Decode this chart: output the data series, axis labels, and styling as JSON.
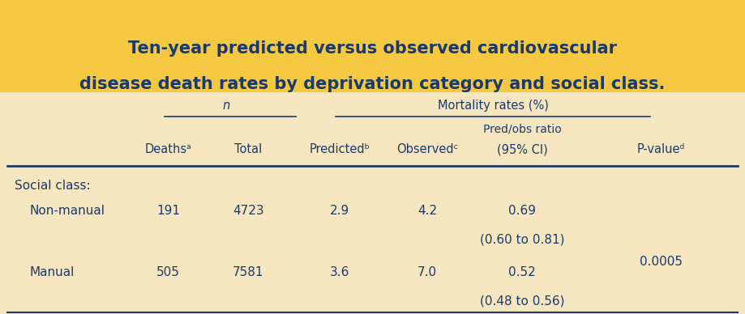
{
  "title_line1": "Ten-year predicted versus observed cardiovascular",
  "title_line2": "disease death rates by deprivation category and social class.",
  "title_bg_color": "#F5C842",
  "table_bg_color": "#F5E6C0",
  "text_color": "#1B3A6B",
  "header_group1": "n",
  "header_group2": "Mortality rates (%)",
  "col_headers": [
    "Deathsᵃ",
    "Total",
    "Predictedᵇ",
    "Observedᶜ",
    "Pred/obs ratio\n(95% CI)",
    "P-valueᵈ"
  ],
  "row_section": "Social class:",
  "rows": [
    {
      "label": "Non-manual",
      "deaths": "191",
      "total": "4723",
      "predicted": "2.9",
      "observed": "4.2",
      "pred_obs_1": "0.69",
      "pred_obs_2": "(0.60 to 0.81)",
      "pvalue": ""
    },
    {
      "label": "Manual",
      "deaths": "505",
      "total": "7581",
      "predicted": "3.6",
      "observed": "7.0",
      "pred_obs_1": "0.52",
      "pred_obs_2": "(0.48 to 0.56)",
      "pvalue": "0.0005"
    }
  ],
  "title_fontsize": 15,
  "header_fontsize": 10.5,
  "body_fontsize": 11
}
